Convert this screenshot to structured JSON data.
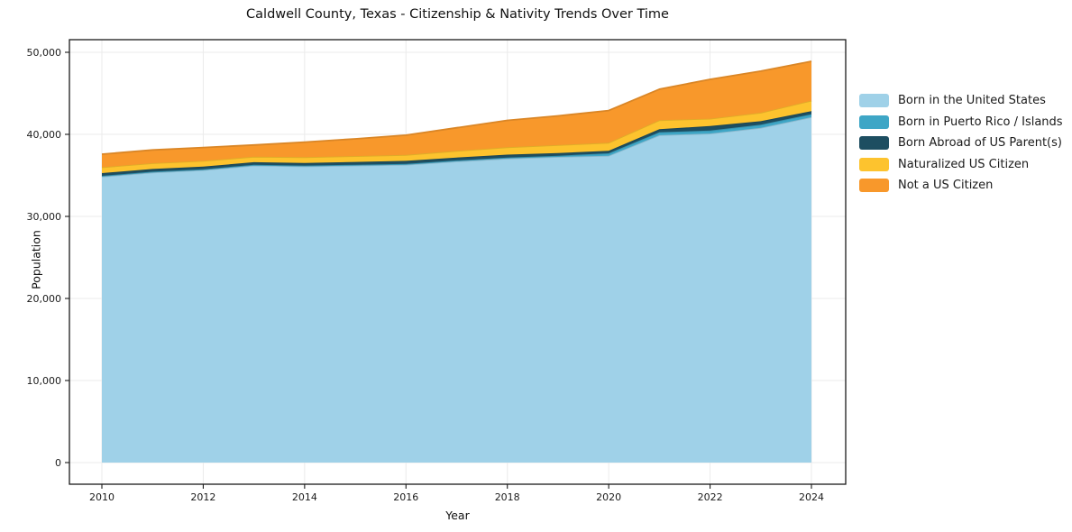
{
  "title": "Caldwell County, Texas - Citizenship & Nativity Trends Over Time",
  "chart_data": {
    "type": "area",
    "stacked": true,
    "title": "Caldwell County, Texas - Citizenship & Nativity Trends Over Time",
    "xlabel": "Year",
    "ylabel": "Population",
    "grid": true,
    "legend_position": "right-outside",
    "x": [
      2010,
      2011,
      2012,
      2013,
      2014,
      2015,
      2016,
      2017,
      2018,
      2019,
      2020,
      2021,
      2022,
      2023,
      2024
    ],
    "x_ticks": [
      2010,
      2012,
      2014,
      2016,
      2018,
      2020,
      2022,
      2024
    ],
    "x_tick_labels": [
      "2010",
      "2012",
      "2014",
      "2016",
      "2018",
      "2020",
      "2022",
      "2024"
    ],
    "y_ticks": [
      0,
      10000,
      20000,
      30000,
      40000,
      50000
    ],
    "y_tick_labels": [
      "0",
      "10,000",
      "20,000",
      "30,000",
      "40,000",
      "50,000"
    ],
    "xlim": [
      2009.36,
      2024.68
    ],
    "ylim": [
      0,
      51540
    ],
    "series": [
      {
        "name": "Born in the United States",
        "color": "#9fd1e8",
        "values": [
          34850,
          35350,
          35650,
          36200,
          36100,
          36200,
          36300,
          36700,
          37050,
          37250,
          37400,
          39900,
          40100,
          40800,
          42100
        ]
      },
      {
        "name": "Born in Puerto Rico / Islands",
        "color": "#3ea6c6",
        "values": [
          100,
          100,
          100,
          100,
          100,
          100,
          110,
          120,
          130,
          150,
          290,
          360,
          360,
          380,
          360
        ]
      },
      {
        "name": "Born Abroad of US Parent(s)",
        "color": "#1d4e61",
        "values": [
          330,
          325,
          315,
          300,
          320,
          340,
          360,
          355,
          350,
          330,
          300,
          380,
          550,
          420,
          370
        ]
      },
      {
        "name": "Naturalized US Citizen",
        "color": "#fdc32e",
        "values": [
          710,
          705,
          700,
          680,
          700,
          715,
          730,
          815,
          900,
          960,
          990,
          1090,
          900,
          1040,
          1280
        ]
      },
      {
        "name": "Not a US Citizen",
        "color": "#f8982b",
        "values": [
          1590,
          1620,
          1635,
          1420,
          1830,
          2095,
          2400,
          2810,
          3270,
          3560,
          3920,
          3770,
          4790,
          5060,
          4790
        ]
      }
    ],
    "totals": [
      37580,
      38100,
      38400,
      38700,
      39050,
      39450,
      39900,
      40800,
      41700,
      42250,
      42900,
      45500,
      46700,
      47700,
      48900
    ],
    "colors": {
      "grid": "#ebebeb",
      "spine": "#1a1a1a",
      "tick_text": "#1a1a1a",
      "background": "#ffffff"
    }
  }
}
